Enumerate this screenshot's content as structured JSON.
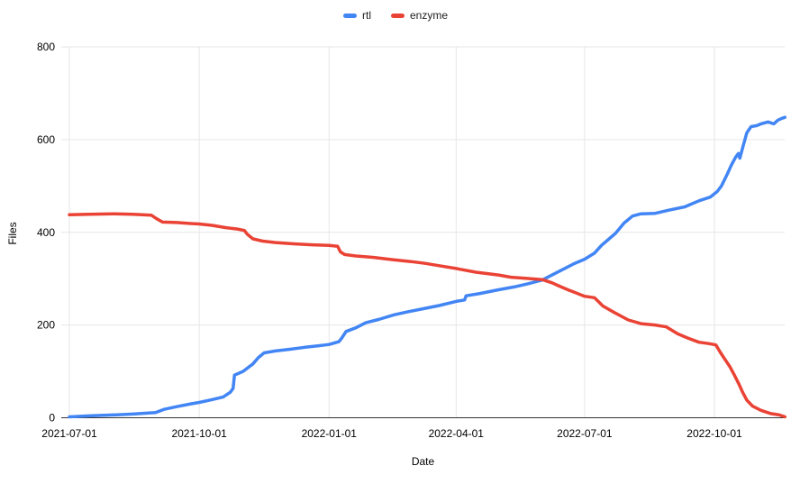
{
  "chart": {
    "background_color": "#ffffff",
    "grid_color": "#e6e6e6",
    "axis_line_color": "#333333",
    "text_color": "#000000"
  },
  "chart_data": {
    "type": "line",
    "title": "",
    "xlabel": "Date",
    "ylabel": "Files",
    "ylim": [
      0,
      800
    ],
    "grid": true,
    "legend_position": "top",
    "y_ticks": [
      0,
      200,
      400,
      600,
      800
    ],
    "x_ticks": [
      "2021-07-01",
      "2021-10-01",
      "2022-01-01",
      "2022-04-01",
      "2022-07-01",
      "2022-10-01"
    ],
    "x_range": [
      "2021-07-01",
      "2022-11-20"
    ],
    "series": [
      {
        "name": "rtl",
        "color": "#4285f4",
        "points": [
          [
            "2021-07-01",
            2
          ],
          [
            "2021-07-15",
            4
          ],
          [
            "2021-08-01",
            6
          ],
          [
            "2021-08-15",
            8
          ],
          [
            "2021-08-31",
            11
          ],
          [
            "2021-09-06",
            18
          ],
          [
            "2021-09-15",
            24
          ],
          [
            "2021-09-25",
            30
          ],
          [
            "2021-10-01",
            33
          ],
          [
            "2021-10-10",
            39
          ],
          [
            "2021-10-18",
            45
          ],
          [
            "2021-10-23",
            55
          ],
          [
            "2021-10-25",
            63
          ],
          [
            "2021-10-26",
            92
          ],
          [
            "2021-11-01",
            100
          ],
          [
            "2021-11-08",
            116
          ],
          [
            "2021-11-12",
            130
          ],
          [
            "2021-11-16",
            140
          ],
          [
            "2021-11-24",
            144
          ],
          [
            "2021-12-05",
            148
          ],
          [
            "2021-12-15",
            152
          ],
          [
            "2021-12-24",
            155
          ],
          [
            "2022-01-01",
            158
          ],
          [
            "2022-01-08",
            164
          ],
          [
            "2022-01-10",
            172
          ],
          [
            "2022-01-13",
            186
          ],
          [
            "2022-01-20",
            194
          ],
          [
            "2022-01-27",
            205
          ],
          [
            "2022-02-05",
            212
          ],
          [
            "2022-02-16",
            222
          ],
          [
            "2022-02-25",
            228
          ],
          [
            "2022-03-10",
            236
          ],
          [
            "2022-03-20",
            242
          ],
          [
            "2022-04-01",
            251
          ],
          [
            "2022-04-07",
            254
          ],
          [
            "2022-04-08",
            263
          ],
          [
            "2022-04-18",
            268
          ],
          [
            "2022-05-01",
            276
          ],
          [
            "2022-05-12",
            282
          ],
          [
            "2022-05-22",
            289
          ],
          [
            "2022-06-01",
            297
          ],
          [
            "2022-06-08",
            308
          ],
          [
            "2022-06-15",
            319
          ],
          [
            "2022-06-24",
            333
          ],
          [
            "2022-07-01",
            342
          ],
          [
            "2022-07-08",
            355
          ],
          [
            "2022-07-13",
            372
          ],
          [
            "2022-07-18",
            385
          ],
          [
            "2022-07-23",
            398
          ],
          [
            "2022-07-29",
            420
          ],
          [
            "2022-08-04",
            435
          ],
          [
            "2022-08-10",
            440
          ],
          [
            "2022-08-20",
            441
          ],
          [
            "2022-08-30",
            448
          ],
          [
            "2022-09-10",
            455
          ],
          [
            "2022-09-20",
            468
          ],
          [
            "2022-09-28",
            476
          ],
          [
            "2022-10-03",
            488
          ],
          [
            "2022-10-06",
            500
          ],
          [
            "2022-10-10",
            525
          ],
          [
            "2022-10-13",
            545
          ],
          [
            "2022-10-16",
            562
          ],
          [
            "2022-10-18",
            570
          ],
          [
            "2022-10-19",
            560
          ],
          [
            "2022-10-21",
            582
          ],
          [
            "2022-10-24",
            615
          ],
          [
            "2022-10-27",
            628
          ],
          [
            "2022-10-31",
            630
          ],
          [
            "2022-11-03",
            634
          ],
          [
            "2022-11-08",
            638
          ],
          [
            "2022-11-12",
            634
          ],
          [
            "2022-11-15",
            642
          ],
          [
            "2022-11-18",
            646
          ],
          [
            "2022-11-20",
            648
          ]
        ]
      },
      {
        "name": "enzyme",
        "color": "#ea4335",
        "points": [
          [
            "2021-07-01",
            438
          ],
          [
            "2021-07-15",
            439
          ],
          [
            "2021-08-01",
            440
          ],
          [
            "2021-08-15",
            439
          ],
          [
            "2021-08-28",
            437
          ],
          [
            "2021-09-01",
            429
          ],
          [
            "2021-09-05",
            422
          ],
          [
            "2021-09-15",
            421
          ],
          [
            "2021-09-25",
            419
          ],
          [
            "2021-10-01",
            418
          ],
          [
            "2021-10-10",
            415
          ],
          [
            "2021-10-20",
            410
          ],
          [
            "2021-10-28",
            407
          ],
          [
            "2021-11-02",
            404
          ],
          [
            "2021-11-04",
            396
          ],
          [
            "2021-11-08",
            386
          ],
          [
            "2021-11-15",
            381
          ],
          [
            "2021-11-24",
            378
          ],
          [
            "2021-12-08",
            375
          ],
          [
            "2021-12-20",
            373
          ],
          [
            "2022-01-01",
            372
          ],
          [
            "2022-01-07",
            370
          ],
          [
            "2022-01-09",
            358
          ],
          [
            "2022-01-12",
            352
          ],
          [
            "2022-01-20",
            349
          ],
          [
            "2022-02-01",
            346
          ],
          [
            "2022-02-15",
            341
          ],
          [
            "2022-02-28",
            337
          ],
          [
            "2022-03-10",
            333
          ],
          [
            "2022-03-20",
            328
          ],
          [
            "2022-04-01",
            322
          ],
          [
            "2022-04-15",
            314
          ],
          [
            "2022-05-01",
            308
          ],
          [
            "2022-05-10",
            303
          ],
          [
            "2022-05-20",
            301
          ],
          [
            "2022-06-01",
            298
          ],
          [
            "2022-06-08",
            291
          ],
          [
            "2022-06-13",
            284
          ],
          [
            "2022-06-20",
            275
          ],
          [
            "2022-06-26",
            268
          ],
          [
            "2022-07-01",
            262
          ],
          [
            "2022-07-08",
            259
          ],
          [
            "2022-07-11",
            250
          ],
          [
            "2022-07-14",
            241
          ],
          [
            "2022-07-22",
            227
          ],
          [
            "2022-08-01",
            211
          ],
          [
            "2022-08-10",
            203
          ],
          [
            "2022-08-20",
            200
          ],
          [
            "2022-08-28",
            196
          ],
          [
            "2022-09-05",
            181
          ],
          [
            "2022-09-12",
            172
          ],
          [
            "2022-09-20",
            163
          ],
          [
            "2022-09-27",
            160
          ],
          [
            "2022-10-02",
            157
          ],
          [
            "2022-10-05",
            142
          ],
          [
            "2022-10-08",
            128
          ],
          [
            "2022-10-12",
            110
          ],
          [
            "2022-10-15",
            93
          ],
          [
            "2022-10-18",
            75
          ],
          [
            "2022-10-21",
            55
          ],
          [
            "2022-10-24",
            38
          ],
          [
            "2022-10-28",
            25
          ],
          [
            "2022-11-03",
            16
          ],
          [
            "2022-11-10",
            9
          ],
          [
            "2022-11-16",
            6
          ],
          [
            "2022-11-20",
            2
          ]
        ]
      }
    ]
  }
}
